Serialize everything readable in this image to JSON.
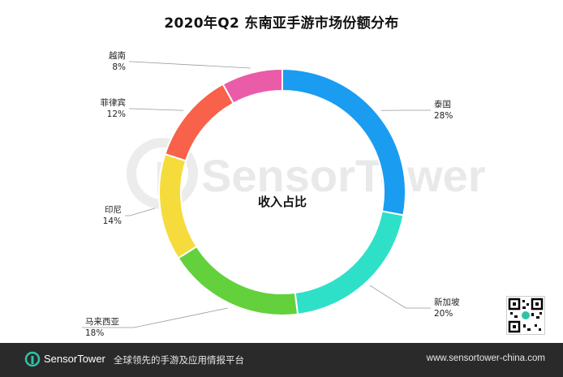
{
  "title": "2020年Q2 东南亚手游市场份额分布",
  "chart_data": {
    "type": "pie",
    "donut": true,
    "center_label": "收入占比",
    "slices": [
      {
        "label": "泰国",
        "percent_label": "28%",
        "value": 28,
        "color": "#1a9cf0"
      },
      {
        "label": "新加坡",
        "percent_label": "20%",
        "value": 20,
        "color": "#2fe0c8"
      },
      {
        "label": "马来西亚",
        "percent_label": "18%",
        "value": 18,
        "color": "#63d13c"
      },
      {
        "label": "印尼",
        "percent_label": "14%",
        "value": 14,
        "color": "#f5dc3c"
      },
      {
        "label": "菲律宾",
        "percent_label": "12%",
        "value": 12,
        "color": "#f8614a"
      },
      {
        "label": "越南",
        "percent_label": "8%",
        "value": 8,
        "color": "#ea5ba8"
      }
    ]
  },
  "watermark": {
    "text": "SensorTower"
  },
  "footer": {
    "brand_part1": "Sensor",
    "brand_part2": "Tower",
    "slogan": "全球领先的手游及应用情报平台",
    "url": "www.sensortower-china.com",
    "logo_color": "#2fc3a6"
  },
  "qr_icon": "qr-code-icon"
}
